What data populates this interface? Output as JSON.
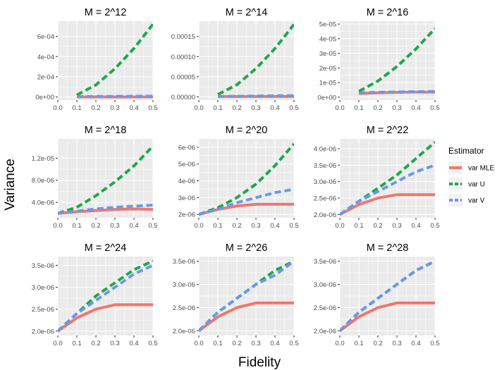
{
  "figure": {
    "xlabel": "Fidelity",
    "ylabel": "Variance",
    "legend": {
      "title": "Estimator",
      "position": "right",
      "entries": [
        {
          "name": "var MLE",
          "color": "#F0776D",
          "linetype": "solid"
        },
        {
          "name": "var U",
          "color": "#1FA84A",
          "linetype": "dashed"
        },
        {
          "name": "var V",
          "color": "#6C98E8",
          "linetype": "dashed"
        }
      ]
    },
    "background": {
      "panel": "#EBEBEB",
      "grid": "#FFFFFF",
      "grid_on": true
    }
  },
  "chart_data": [
    {
      "type": "line",
      "title": "M = 2^12",
      "x": [
        0.1,
        0.2,
        0.3,
        0.4,
        0.5
      ],
      "xlim": [
        0.0,
        0.5
      ],
      "xticks": [
        "0.0",
        "0.1",
        "0.2",
        "0.3",
        "0.4",
        "0.5"
      ],
      "ylim": [
        -3e-05,
        0.00075
      ],
      "yticks": [
        0,
        0.0002,
        0.0004,
        0.0006
      ],
      "yticklabels": [
        "0e+00",
        "2e-04",
        "4e-04",
        "6e-04"
      ],
      "series": [
        {
          "name": "var MLE",
          "values": [
            1e-06,
            1e-06,
            1e-06,
            1e-06,
            1e-06
          ]
        },
        {
          "name": "var U",
          "values": [
            2e-05,
            0.00012,
            0.00028,
            0.00048,
            0.00072
          ]
        },
        {
          "name": "var V",
          "values": [
            5e-06,
            6e-06,
            7e-06,
            8e-06,
            9e-06
          ]
        }
      ]
    },
    {
      "type": "line",
      "title": "M = 2^14",
      "x": [
        0.1,
        0.2,
        0.3,
        0.4,
        0.5
      ],
      "xlim": [
        0.0,
        0.5
      ],
      "xticks": [
        "0.0",
        "0.1",
        "0.2",
        "0.3",
        "0.4",
        "0.5"
      ],
      "ylim": [
        -8e-06,
        0.000188
      ],
      "yticks": [
        0,
        5e-05,
        0.0001,
        0.00015
      ],
      "yticklabels": [
        "0.00000",
        "0.00005",
        "0.00010",
        "0.00015"
      ],
      "series": [
        {
          "name": "var MLE",
          "values": [
            1e-06,
            1e-06,
            1e-06,
            1e-06,
            1e-06
          ]
        },
        {
          "name": "var U",
          "values": [
            6e-06,
            3e-05,
            7e-05,
            0.00012,
            0.00018
          ]
        },
        {
          "name": "var V",
          "values": [
            1e-06,
            1.5e-06,
            2e-06,
            2.5e-06,
            3e-06
          ]
        }
      ]
    },
    {
      "type": "line",
      "title": "M = 2^16",
      "x": [
        0.1,
        0.2,
        0.3,
        0.4,
        0.5
      ],
      "xlim": [
        0.0,
        0.5
      ],
      "xticks": [
        "0.0",
        "0.1",
        "0.2",
        "0.3",
        "0.4",
        "0.5"
      ],
      "ylim": [
        -2e-06,
        5.2e-05
      ],
      "yticks": [
        0,
        1e-05,
        2e-05,
        3e-05,
        4e-05,
        5e-05
      ],
      "yticklabels": [
        "0e+00",
        "1e-05",
        "2e-05",
        "3e-05",
        "4e-05",
        "5e-05"
      ],
      "series": [
        {
          "name": "var MLE",
          "values": [
            2.5e-06,
            3e-06,
            3.3e-06,
            3.5e-06,
            3.5e-06
          ]
        },
        {
          "name": "var U",
          "values": [
            4e-06,
            1.1e-05,
            2.1e-05,
            3.3e-05,
            4.7e-05
          ]
        },
        {
          "name": "var V",
          "values": [
            3e-06,
            3.3e-06,
            3.6e-06,
            3.8e-06,
            4e-06
          ]
        }
      ]
    },
    {
      "type": "line",
      "title": "M = 2^18",
      "x": [
        0.0,
        0.1,
        0.2,
        0.3,
        0.4,
        0.5
      ],
      "xlim": [
        0.0,
        0.5
      ],
      "xticks": [
        "0.0",
        "0.1",
        "0.2",
        "0.3",
        "0.4",
        "0.5"
      ],
      "ylim": [
        1.2e-06,
        1.55e-05
      ],
      "yticks": [
        4e-06,
        8e-06,
        1.2e-05
      ],
      "yticklabels": [
        "4.0e-06",
        "8.0e-06",
        "1.2e-05"
      ],
      "series": [
        {
          "name": "var MLE",
          "values": [
            2e-06,
            2.3e-06,
            2.5e-06,
            2.7e-06,
            2.8e-06,
            2.7e-06
          ]
        },
        {
          "name": "var U",
          "values": [
            2e-06,
            3.1e-06,
            5.2e-06,
            7.7e-06,
            1.06e-05,
            1.42e-05
          ]
        },
        {
          "name": "var V",
          "values": [
            2e-06,
            2.4e-06,
            2.8e-06,
            3.1e-06,
            3.3e-06,
            3.5e-06
          ]
        }
      ]
    },
    {
      "type": "line",
      "title": "M = 2^20",
      "x": [
        0.0,
        0.1,
        0.2,
        0.3,
        0.4,
        0.5
      ],
      "xlim": [
        0.0,
        0.5
      ],
      "xticks": [
        "0.0",
        "0.1",
        "0.2",
        "0.3",
        "0.4",
        "0.5"
      ],
      "ylim": [
        1.8e-06,
        6.5e-06
      ],
      "yticks": [
        2e-06,
        3e-06,
        4e-06,
        5e-06,
        6e-06
      ],
      "yticklabels": [
        "2e-06",
        "3e-06",
        "4e-06",
        "5e-06",
        "6e-06"
      ],
      "series": [
        {
          "name": "var MLE",
          "values": [
            2e-06,
            2.3e-06,
            2.5e-06,
            2.6e-06,
            2.6e-06,
            2.6e-06
          ]
        },
        {
          "name": "var U",
          "values": [
            2e-06,
            2.4e-06,
            3e-06,
            3.8e-06,
            4.9e-06,
            6.2e-06
          ]
        },
        {
          "name": "var V",
          "values": [
            2e-06,
            2.3e-06,
            2.7e-06,
            3e-06,
            3.3e-06,
            3.5e-06
          ]
        }
      ]
    },
    {
      "type": "line",
      "title": "M = 2^22",
      "x": [
        0.0,
        0.1,
        0.2,
        0.3,
        0.4,
        0.5
      ],
      "xlim": [
        0.0,
        0.5
      ],
      "xticks": [
        "0.0",
        "0.1",
        "0.2",
        "0.3",
        "0.4",
        "0.5"
      ],
      "ylim": [
        1.9e-06,
        4.3e-06
      ],
      "yticks": [
        2e-06,
        2.5e-06,
        3e-06,
        3.5e-06,
        4e-06
      ],
      "yticklabels": [
        "2.0e-06",
        "2.5e-06",
        "3.0e-06",
        "3.5e-06",
        "4.0e-06"
      ],
      "series": [
        {
          "name": "var MLE",
          "values": [
            2e-06,
            2.3e-06,
            2.5e-06,
            2.6e-06,
            2.6e-06,
            2.6e-06
          ]
        },
        {
          "name": "var U",
          "values": [
            2e-06,
            2.4e-06,
            2.8e-06,
            3.2e-06,
            3.7e-06,
            4.2e-06
          ]
        },
        {
          "name": "var V",
          "values": [
            2e-06,
            2.4e-06,
            2.7e-06,
            3e-06,
            3.3e-06,
            3.5e-06
          ]
        }
      ]
    },
    {
      "type": "line",
      "title": "M = 2^24",
      "x": [
        0.0,
        0.1,
        0.2,
        0.3,
        0.4,
        0.5
      ],
      "xlim": [
        0.0,
        0.5
      ],
      "xticks": [
        "0.0",
        "0.1",
        "0.2",
        "0.3",
        "0.4",
        "0.5"
      ],
      "ylim": [
        1.9e-06,
        3.7e-06
      ],
      "yticks": [
        2e-06,
        2.5e-06,
        3e-06,
        3.5e-06
      ],
      "yticklabels": [
        "2.0e-06",
        "2.5e-06",
        "3.0e-06",
        "3.5e-06"
      ],
      "series": [
        {
          "name": "var MLE",
          "values": [
            2e-06,
            2.3e-06,
            2.5e-06,
            2.6e-06,
            2.6e-06,
            2.6e-06
          ]
        },
        {
          "name": "var U",
          "values": [
            2e-06,
            2.4e-06,
            2.8e-06,
            3.1e-06,
            3.4e-06,
            3.6e-06
          ]
        },
        {
          "name": "var V",
          "values": [
            2e-06,
            2.4e-06,
            2.7e-06,
            3e-06,
            3.3e-06,
            3.5e-06
          ]
        }
      ]
    },
    {
      "type": "line",
      "title": "M = 2^26",
      "x": [
        0.0,
        0.1,
        0.2,
        0.3,
        0.4,
        0.5
      ],
      "xlim": [
        0.0,
        0.5
      ],
      "xticks": [
        "0.0",
        "0.1",
        "0.2",
        "0.3",
        "0.4",
        "0.5"
      ],
      "ylim": [
        1.9e-06,
        3.6e-06
      ],
      "yticks": [
        2e-06,
        2.5e-06,
        3e-06,
        3.5e-06
      ],
      "yticklabels": [
        "2.0e-06",
        "2.5e-06",
        "3.0e-06",
        "3.5e-06"
      ],
      "series": [
        {
          "name": "var MLE",
          "values": [
            2e-06,
            2.3e-06,
            2.5e-06,
            2.6e-06,
            2.6e-06,
            2.6e-06
          ]
        },
        {
          "name": "var U",
          "values": [
            2e-06,
            2.4e-06,
            2.7e-06,
            3e-06,
            3.3e-06,
            3.5e-06
          ]
        },
        {
          "name": "var V",
          "values": [
            2e-06,
            2.4e-06,
            2.7e-06,
            3e-06,
            3.2e-06,
            3.5e-06
          ]
        }
      ]
    },
    {
      "type": "line",
      "title": "M = 2^28",
      "x": [
        0.0,
        0.1,
        0.2,
        0.3,
        0.4,
        0.5
      ],
      "xlim": [
        0.0,
        0.5
      ],
      "xticks": [
        "0.0",
        "0.1",
        "0.2",
        "0.3",
        "0.4",
        "0.5"
      ],
      "ylim": [
        1.9e-06,
        3.6e-06
      ],
      "yticks": [
        2e-06,
        2.5e-06,
        3e-06,
        3.5e-06
      ],
      "yticklabels": [
        "2.0e-06",
        "2.5e-06",
        "3.0e-06",
        "3.5e-06"
      ],
      "series": [
        {
          "name": "var MLE",
          "values": [
            2e-06,
            2.3e-06,
            2.5e-06,
            2.6e-06,
            2.6e-06,
            2.6e-06
          ]
        },
        {
          "name": "var U",
          "values": [
            2e-06,
            2.4e-06,
            2.7e-06,
            3e-06,
            3.3e-06,
            3.5e-06
          ]
        },
        {
          "name": "var V",
          "values": [
            2e-06,
            2.4e-06,
            2.7e-06,
            3e-06,
            3.3e-06,
            3.5e-06
          ]
        }
      ]
    }
  ]
}
